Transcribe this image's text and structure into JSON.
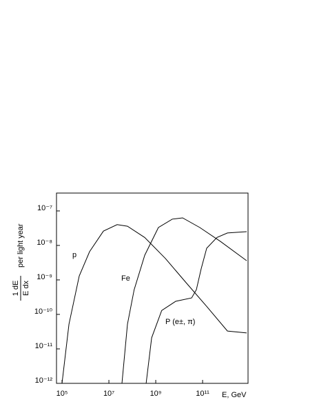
{
  "chart_data": {
    "type": "line",
    "xlabel": "E, GeV",
    "ylabel": "per light year",
    "ylabel_numerator": "1  dE",
    "ylabel_denominator": "E  dx",
    "xscale": "log",
    "yscale": "log",
    "xlim": [
      58000,
      8700000000000
    ],
    "ylim": [
      1e-12,
      3.3e-07
    ],
    "xticks": [
      {
        "value": 100000,
        "label": "10⁵"
      },
      {
        "value": 10000000,
        "label": "10⁷"
      },
      {
        "value": 1000000000,
        "label": "10⁹"
      },
      {
        "value": 100000000000,
        "label": "10¹¹"
      }
    ],
    "yticks": [
      {
        "value": 1e-12,
        "label": "10⁻¹²"
      },
      {
        "value": 1e-11,
        "label": "10⁻¹¹"
      },
      {
        "value": 1e-10,
        "label": "10⁻¹⁰"
      },
      {
        "value": 1e-09,
        "label": "10⁻⁹"
      },
      {
        "value": 1e-08,
        "label": "10⁻⁸"
      },
      {
        "value": 1e-07,
        "label": "10⁻⁷"
      }
    ],
    "series": [
      {
        "name": "p",
        "color": "#000000",
        "x": [
          100000,
          197000,
          543000,
          1500000,
          5820000,
          22500000,
          62200000,
          338000000,
          2580000000,
          19700000000,
          150000000000,
          1150000000000,
          7620000000000
        ],
        "values": [
          1e-12,
          5.2e-11,
          1.3e-09,
          6.6e-09,
          2.6e-08,
          4e-08,
          3.6e-08,
          1.7e-08,
          4.2e-09,
          8.3e-10,
          1.7e-10,
          3.3e-11,
          2.9e-11
        ]
      },
      {
        "name": "Fe",
        "color": "#000000",
        "x": [
          36000000,
          62000000,
          120000000,
          340000000,
          1300000000,
          5100000000,
          14000000000,
          76000000000,
          580000000000,
          7600000000000
        ],
        "values": [
          1e-12,
          5.2e-11,
          5.2e-10,
          5.2e-09,
          3.3e-08,
          5.8e-08,
          6.3e-08,
          3.3e-08,
          1.3e-08,
          3.6e-09
        ]
      },
      {
        "name": "P (e±, π)",
        "color": "#000000",
        "x": [
          390000000,
          670000000,
          1800000000,
          7100000000,
          34000000000,
          54000000000,
          87000000000,
          150000000000,
          410000000000,
          1150000000000,
          7600000000000
        ],
        "values": [
          1e-12,
          2.1e-11,
          1.3e-10,
          2.4e-10,
          3e-10,
          5.2e-10,
          2.1e-09,
          8.3e-09,
          1.7e-08,
          2.3e-08,
          2.5e-08
        ]
      }
    ]
  }
}
